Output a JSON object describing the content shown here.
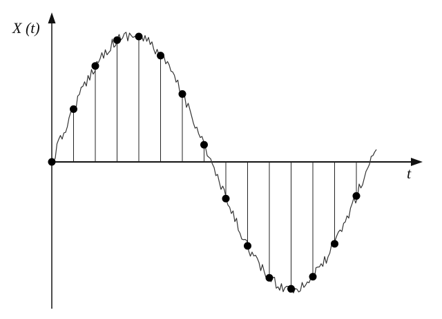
{
  "labels": {
    "y_axis": "X (t)",
    "x_axis": "t"
  },
  "colors": {
    "axis": "#111111",
    "signal": "#333333",
    "sample": "#000000",
    "stem": "#222222",
    "background": "#ffffff"
  },
  "diagram": {
    "description_elements": [
      "y-axis-arrow",
      "x-axis-arrow",
      "noisy-signal-curve",
      "sample-stems",
      "sample-points"
    ],
    "sample_count": 15
  }
}
